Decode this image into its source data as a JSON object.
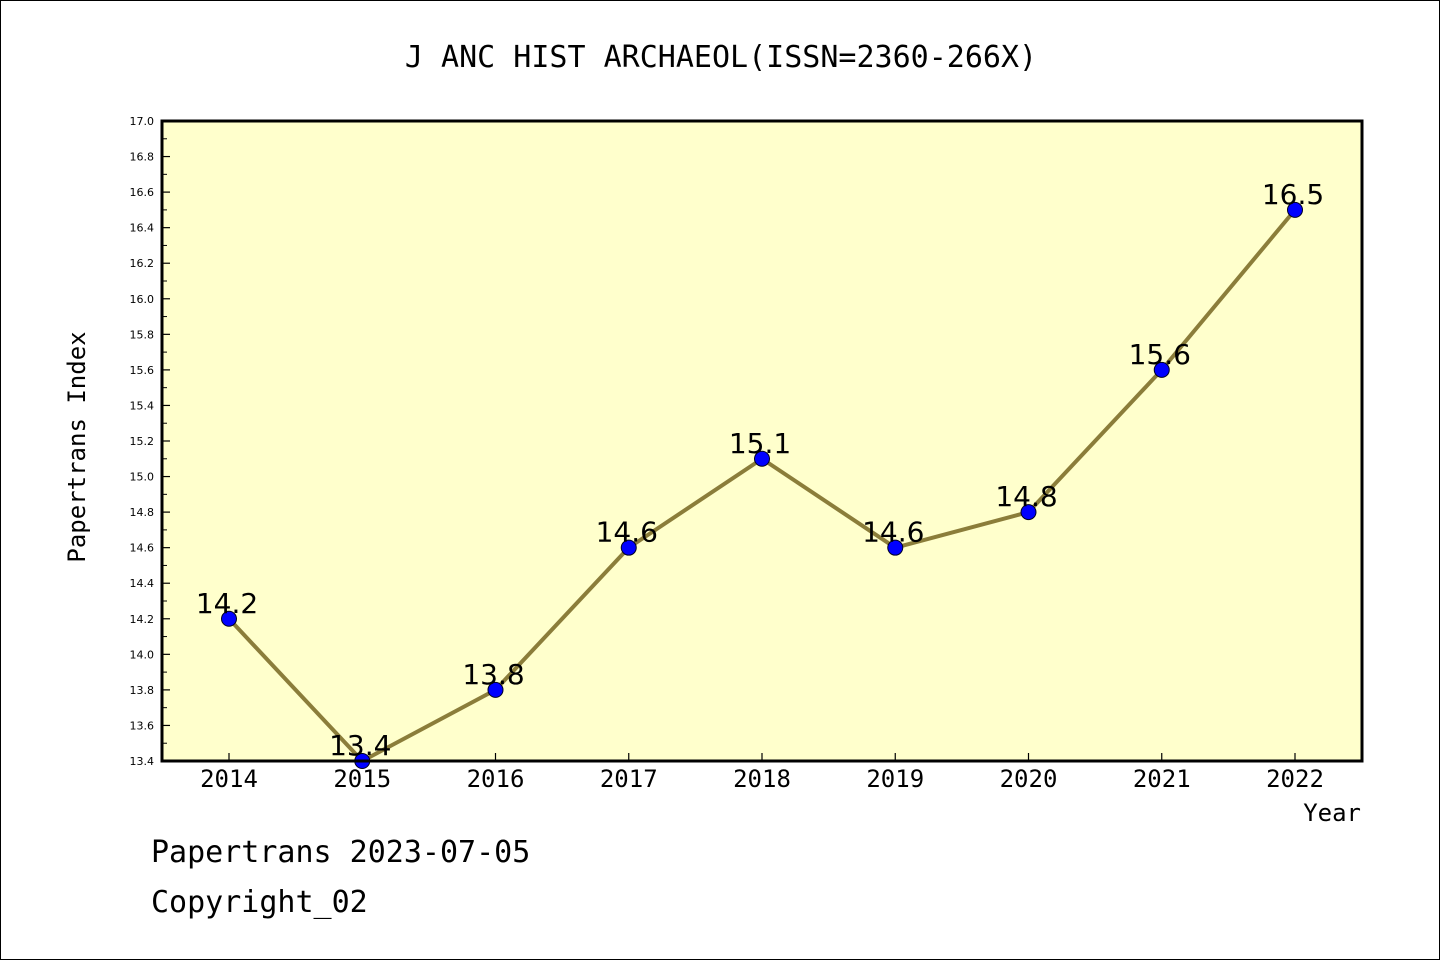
{
  "chart_data": {
    "type": "line",
    "title": "J ANC HIST ARCHAEOL(ISSN=2360-266X)",
    "xlabel": "Year",
    "ylabel": "Papertrans Index",
    "categories": [
      "2014",
      "2015",
      "2016",
      "2017",
      "2018",
      "2019",
      "2020",
      "2021",
      "2022"
    ],
    "values": [
      14.2,
      13.4,
      13.8,
      14.6,
      15.1,
      14.6,
      14.8,
      15.6,
      16.5
    ],
    "value_labels": [
      "14.2",
      "13.4",
      "13.8",
      "14.6",
      "15.1",
      "14.6",
      "14.8",
      "15.6",
      "16.5"
    ],
    "ylim": [
      13.4,
      17.0
    ],
    "y_ticks": [
      "13.4",
      "13.6",
      "13.8",
      "14.0",
      "14.2",
      "14.4",
      "14.6",
      "14.8",
      "15.0",
      "15.2",
      "15.4",
      "15.6",
      "15.8",
      "16.0",
      "16.2",
      "16.4",
      "16.6",
      "16.8",
      "17.0"
    ],
    "grid": false,
    "legend": "none",
    "colors": {
      "plot_background": "#ffffcc",
      "line": "#8b7d3a",
      "marker": "#0000ff"
    }
  },
  "footer": {
    "line1": "Papertrans 2023-07-05",
    "line2": "Copyright_02"
  }
}
